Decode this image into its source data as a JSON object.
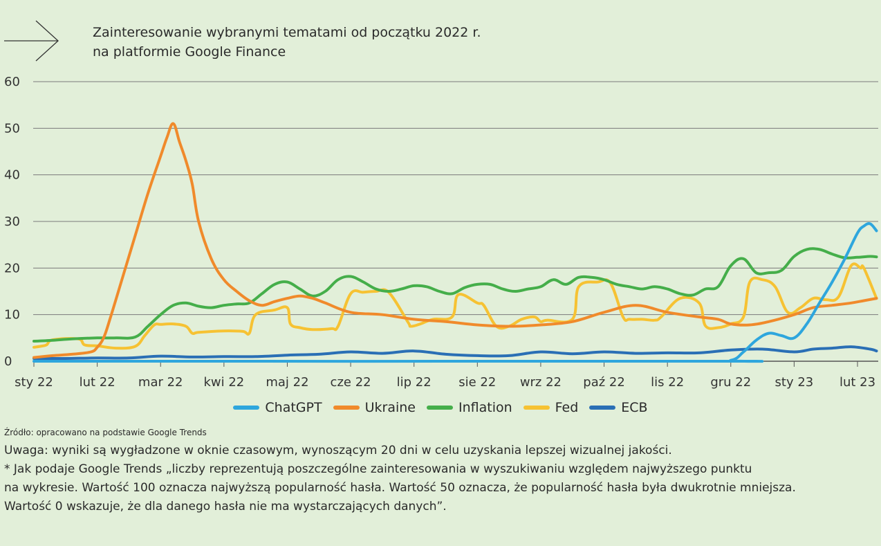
{
  "header": {
    "title_line1": "Zainteresowanie wybranymi tematami od początku 2022 r.",
    "title_line2": "na platformie Google Finance",
    "arrow_icon": "arrow-right-icon"
  },
  "chart_data": {
    "type": "line",
    "title": "Zainteresowanie wybranymi tematami od początku 2022 r. na platformie Google Finance",
    "xlabel": "",
    "ylabel": "",
    "ylim": [
      0,
      60
    ],
    "yticks": [
      "0",
      "10",
      "20",
      "30",
      "40",
      "50",
      "60"
    ],
    "xlim": [
      0,
      13.3
    ],
    "x_tick_labels": [
      "sty 22",
      "lut 22",
      "mar 22",
      "kwi 22",
      "maj 22",
      "cze 22",
      "lip 22",
      "sie 22",
      "wrz 22",
      "paź 22",
      "lis 22",
      "gru 22",
      "sty 23",
      "lut 23"
    ],
    "grid": true,
    "legend_position": "bottom",
    "series": [
      {
        "name": "ECB",
        "color": "#2a6fb5",
        "x": [
          0,
          0.5,
          1,
          1.5,
          2,
          2.5,
          3,
          3.5,
          4,
          4.5,
          5,
          5.5,
          6,
          6.5,
          7,
          7.5,
          8,
          8.5,
          9,
          9.5,
          10,
          10.5,
          11,
          11.5,
          12,
          12.3,
          12.6,
          12.9,
          13.2,
          13.3
        ],
        "y": [
          0.6,
          0.6,
          0.7,
          0.7,
          1.1,
          0.9,
          1.0,
          1.0,
          1.3,
          1.5,
          2.0,
          1.7,
          2.2,
          1.5,
          1.2,
          1.2,
          2.0,
          1.6,
          2.0,
          1.7,
          1.8,
          1.8,
          2.4,
          2.6,
          2.0,
          2.6,
          2.8,
          3.1,
          2.6,
          2.2
        ]
      },
      {
        "name": "Fed",
        "color": "#f6c233",
        "x": [
          0,
          0.1,
          0.2,
          0.3,
          0.7,
          0.8,
          1.0,
          1.3,
          1.6,
          1.75,
          1.9,
          2.0,
          2.2,
          2.4,
          2.5,
          2.6,
          3.0,
          3.3,
          3.4,
          3.5,
          3.8,
          4.0,
          4.05,
          4.2,
          4.4,
          4.7,
          4.8,
          5.0,
          5.2,
          5.4,
          5.6,
          5.9,
          5.95,
          6.1,
          6.3,
          6.6,
          6.7,
          7.0,
          7.1,
          7.3,
          7.5,
          7.7,
          7.9,
          8.0,
          8.1,
          8.5,
          8.6,
          8.9,
          9.1,
          9.3,
          9.4,
          9.6,
          9.8,
          9.9,
          10.2,
          10.5,
          10.6,
          10.8,
          11.0,
          11.2,
          11.3,
          11.5,
          11.7,
          11.9,
          12.1,
          12.3,
          12.5,
          12.7,
          12.9,
          13.05,
          13.1,
          13.3
        ],
        "y": [
          3.0,
          3.2,
          3.5,
          4.6,
          4.8,
          3.5,
          3.3,
          2.8,
          3.2,
          5.5,
          7.8,
          7.9,
          8.0,
          7.5,
          6.0,
          6.2,
          6.5,
          6.4,
          6.0,
          10.0,
          11.0,
          11.5,
          8.0,
          7.2,
          6.8,
          7.0,
          7.5,
          14.5,
          14.8,
          15.0,
          14.8,
          8.5,
          7.5,
          8.0,
          9.0,
          9.5,
          14.3,
          12.5,
          12.0,
          7.5,
          7.5,
          9.0,
          9.5,
          8.5,
          8.8,
          9.0,
          16.0,
          17.0,
          16.8,
          9.5,
          9.0,
          9.0,
          8.8,
          9.5,
          13.5,
          12.5,
          7.6,
          7.2,
          8.0,
          9.5,
          17.0,
          17.5,
          16.0,
          10.5,
          11.5,
          13.5,
          13.2,
          13.8,
          20.5,
          20.0,
          20.0,
          13.5
        ]
      },
      {
        "name": "Inflation",
        "color": "#45ae4a",
        "x": [
          0,
          0.3,
          0.6,
          1.0,
          1.3,
          1.6,
          1.8,
          2.0,
          2.2,
          2.4,
          2.6,
          2.8,
          3.0,
          3.2,
          3.4,
          3.6,
          3.8,
          4.0,
          4.2,
          4.4,
          4.6,
          4.8,
          5.0,
          5.2,
          5.4,
          5.6,
          5.8,
          6.0,
          6.2,
          6.4,
          6.6,
          6.8,
          7.0,
          7.2,
          7.4,
          7.6,
          7.8,
          8.0,
          8.2,
          8.4,
          8.6,
          8.8,
          9.0,
          9.2,
          9.4,
          9.6,
          9.8,
          10.0,
          10.2,
          10.4,
          10.6,
          10.8,
          11.0,
          11.2,
          11.4,
          11.6,
          11.8,
          12.0,
          12.2,
          12.4,
          12.6,
          12.8,
          13.0,
          13.2,
          13.3
        ],
        "y": [
          4.3,
          4.5,
          4.8,
          5.0,
          5.0,
          5.2,
          7.5,
          10.0,
          12.0,
          12.5,
          11.8,
          11.5,
          12.0,
          12.3,
          12.5,
          14.5,
          16.5,
          17.0,
          15.5,
          14.0,
          15.0,
          17.5,
          18.2,
          17.0,
          15.5,
          15.0,
          15.5,
          16.2,
          16.0,
          15.0,
          14.5,
          15.8,
          16.5,
          16.5,
          15.5,
          15.0,
          15.5,
          16.0,
          17.5,
          16.5,
          18.0,
          18.0,
          17.5,
          16.5,
          16.0,
          15.5,
          16.0,
          15.5,
          14.5,
          14.2,
          15.5,
          16.0,
          20.5,
          22.0,
          19.0,
          19.0,
          19.5,
          22.5,
          24.0,
          24.0,
          23.0,
          22.2,
          22.3,
          22.5,
          22.4
        ]
      },
      {
        "name": "Ukraine",
        "color": "#f08a2b",
        "x": [
          0,
          0.3,
          0.6,
          0.9,
          1.0,
          1.1,
          1.2,
          1.4,
          1.6,
          1.8,
          2.0,
          2.1,
          2.2,
          2.3,
          2.4,
          2.5,
          2.6,
          2.8,
          3.0,
          3.2,
          3.4,
          3.6,
          3.8,
          4.0,
          4.2,
          4.4,
          4.6,
          5.0,
          5.5,
          6.0,
          6.5,
          7.0,
          7.5,
          8.0,
          8.5,
          9.0,
          9.5,
          10.0,
          10.5,
          10.8,
          11.0,
          11.3,
          11.6,
          12.0,
          12.3,
          12.6,
          12.9,
          13.1,
          13.3
        ],
        "y": [
          0.8,
          1.2,
          1.5,
          2.0,
          3.0,
          5.0,
          9.0,
          18.0,
          27.0,
          36.0,
          44.0,
          48.0,
          51.0,
          47.0,
          43.0,
          38.0,
          30.0,
          22.0,
          17.5,
          15.0,
          13.0,
          12.0,
          12.8,
          13.5,
          14.0,
          13.5,
          12.5,
          10.5,
          10.0,
          9.0,
          8.5,
          7.8,
          7.5,
          7.8,
          8.5,
          10.5,
          12.0,
          10.5,
          9.5,
          9.0,
          8.0,
          7.8,
          8.5,
          10.0,
          11.5,
          12.0,
          12.5,
          13.0,
          13.5
        ]
      },
      {
        "name": "ChatGPT",
        "color": "#2ea6dd",
        "x": [
          0,
          10.5,
          11.0,
          11.2,
          11.4,
          11.6,
          11.8,
          12.0,
          12.2,
          12.4,
          12.6,
          12.8,
          13.0,
          13.1,
          13.2,
          13.3
        ],
        "y": [
          0.0,
          0.0,
          0.2,
          2.0,
          4.5,
          6.0,
          5.5,
          5.0,
          8.0,
          12.5,
          17.0,
          22.0,
          27.5,
          29.0,
          29.5,
          28.0
        ]
      }
    ]
  },
  "legend": {
    "items": [
      {
        "label": "ChatGPT",
        "color": "#2ea6dd"
      },
      {
        "label": "Ukraine",
        "color": "#f08a2b"
      },
      {
        "label": "Inflation",
        "color": "#45ae4a"
      },
      {
        "label": "Fed",
        "color": "#f6c233"
      },
      {
        "label": "ECB",
        "color": "#2a6fb5"
      }
    ]
  },
  "notes": {
    "source": "Źródło: opracowano na podstawie Google Trends",
    "line1": "Uwaga: wyniki są wygładzone w oknie czasowym, wynoszącym 20 dni w celu uzyskania lepszej wizualnej jakości.",
    "line2": "* Jak podaje Google Trends „liczby reprezentują poszczególne zainteresowania w wyszukiwaniu względem najwyższego punktu",
    "line3": "na wykresie. Wartość 100 oznacza najwyższą popularność hasła. Wartość 50 oznacza, że popularność hasła była dwukrotnie mniejsza.",
    "line4": "Wartość 0 wskazuje, że dla danego hasła nie ma wystarczających danych”."
  }
}
